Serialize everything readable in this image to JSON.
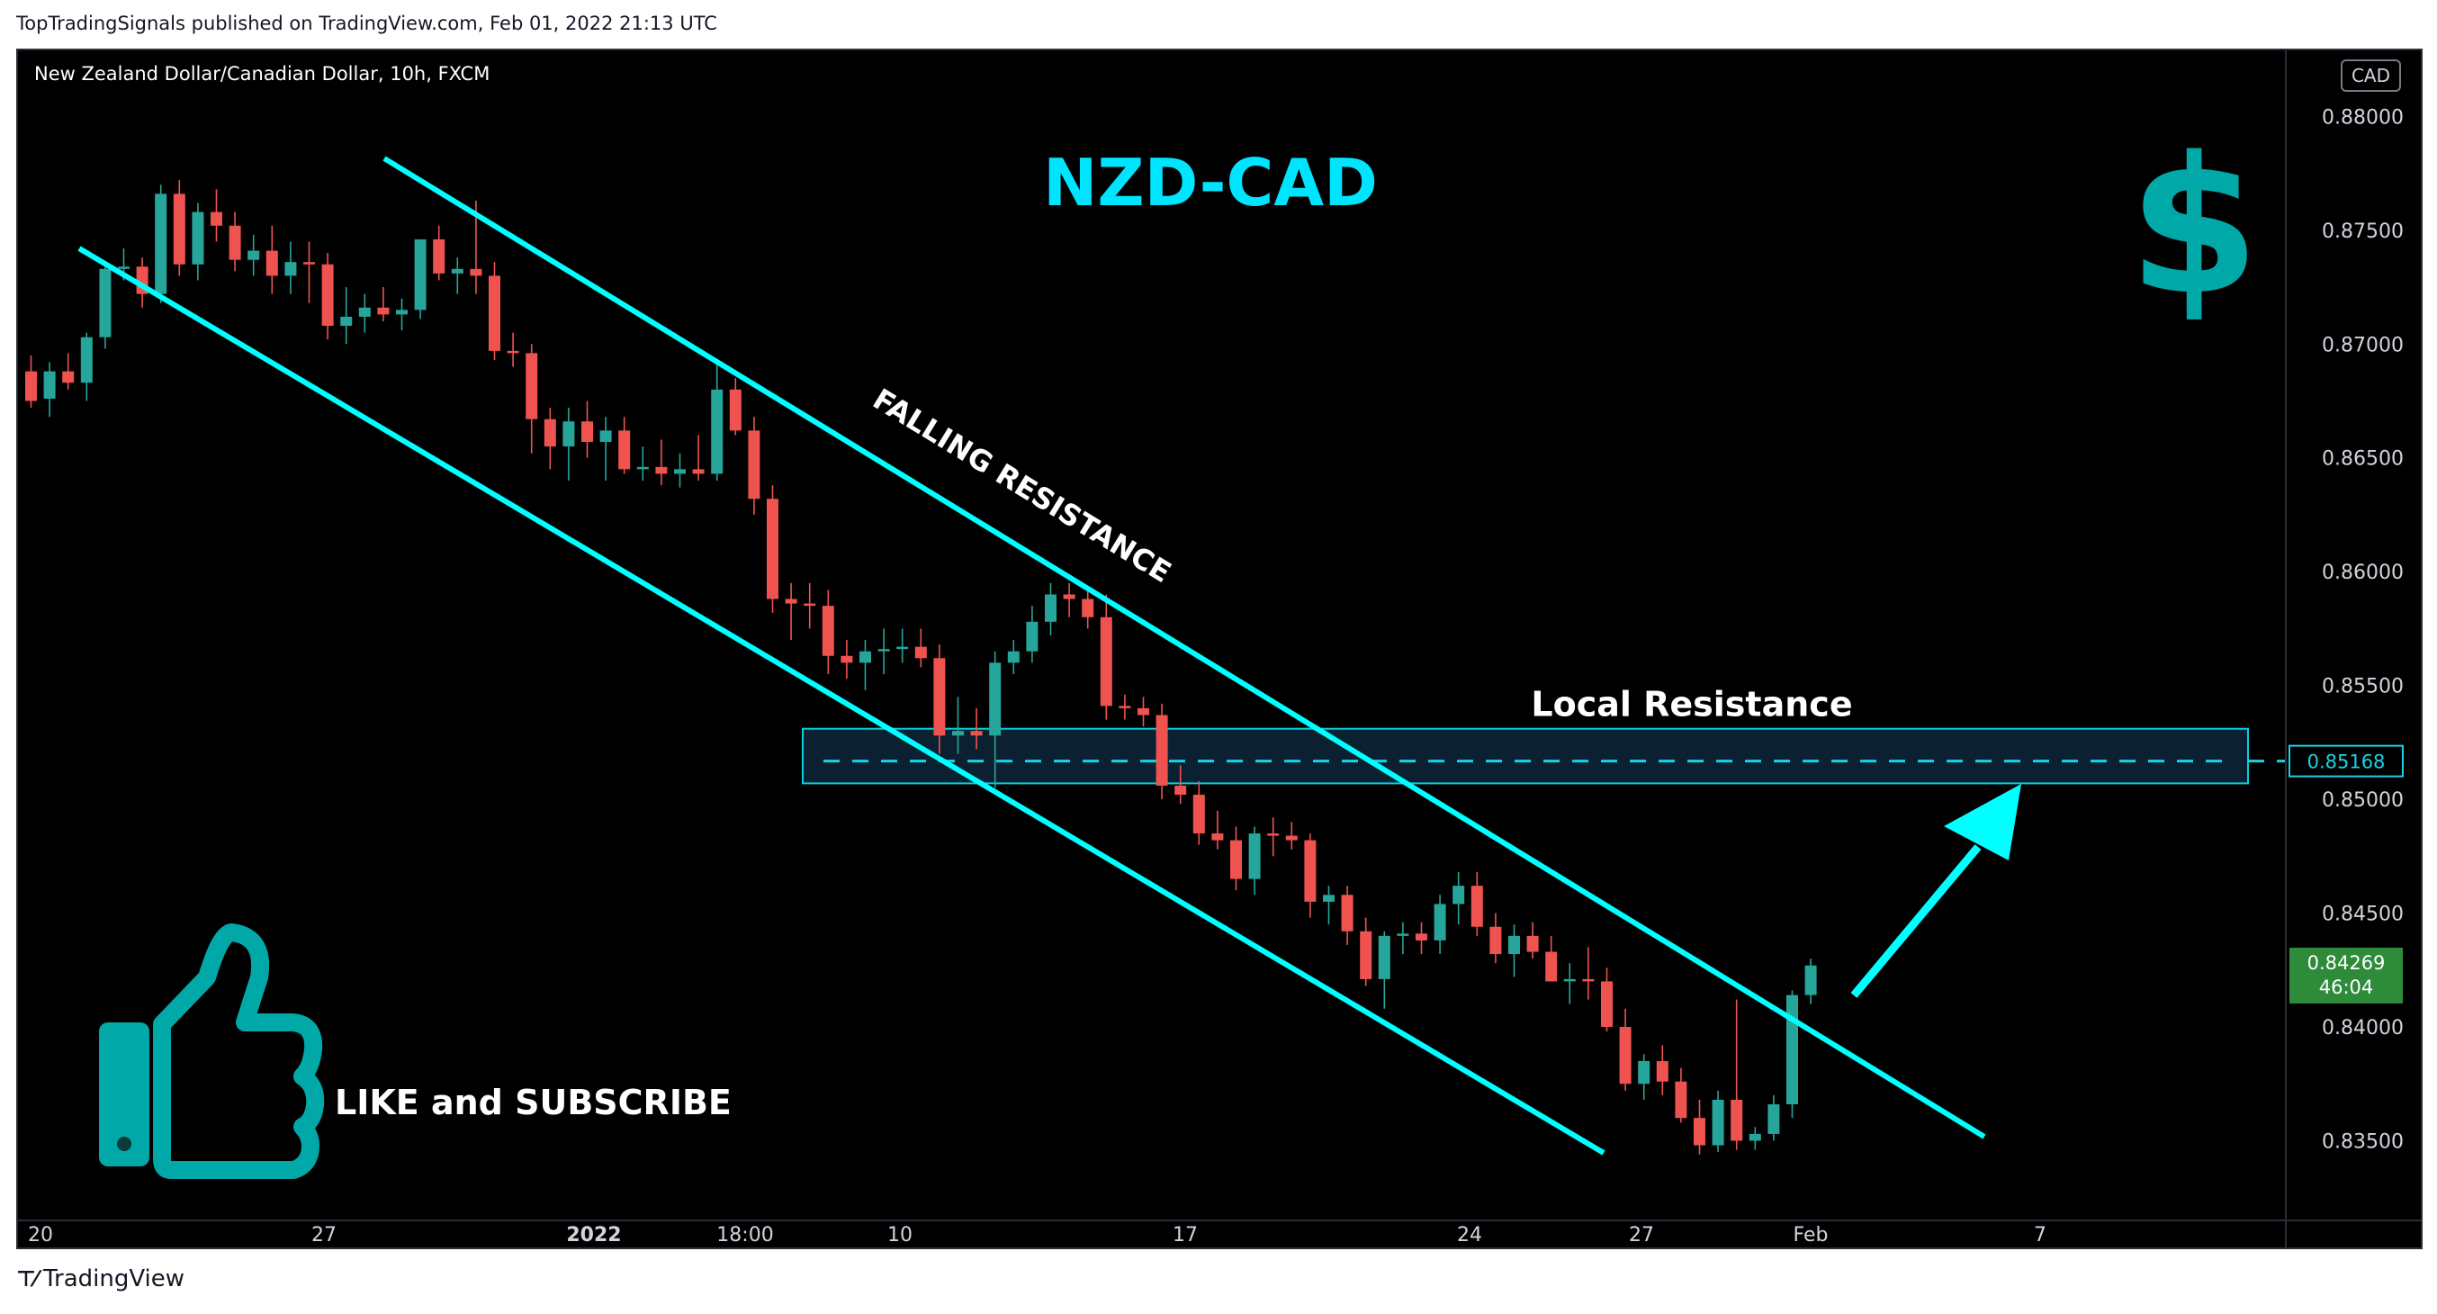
{
  "publisher_line": "TopTradingSignals published on TradingView.com, Feb 01, 2022 21:13 UTC",
  "header": {
    "symbol_line": "New Zealand Dollar/Canadian Dollar, 10h, FXCM",
    "currency": "CAD"
  },
  "footer": {
    "brand": "TradingView"
  },
  "colors": {
    "background": "#000000",
    "up_candle": "#26a69a",
    "down_candle": "#ef5350",
    "trendline": "#00ffff",
    "title": "#00e5ff",
    "icon_teal": "#00a8a8",
    "axis_text": "#d1d4dc",
    "price_tag_bg": "#2e8b3a"
  },
  "chart_data": {
    "type": "candlestick",
    "title": "NZD-CAD",
    "ylim": [
      0.8315,
      0.8829
    ],
    "y_ticks": [
      "0.88000",
      "0.87500",
      "0.87000",
      "0.86500",
      "0.86000",
      "0.85500",
      "0.85000",
      "0.84500",
      "0.84000",
      "0.83500"
    ],
    "x_ticks": [
      "20",
      "27",
      "2022",
      "18:00",
      "10",
      "17",
      "24",
      "27",
      "Feb",
      "7"
    ],
    "current_price": {
      "value": "0.84269",
      "countdown": "46:04"
    },
    "local_resistance": {
      "label": "Local Resistance",
      "price": 0.85168,
      "price_label": "0.85168",
      "zone": [
        0.8507,
        0.8531
      ]
    },
    "channel_label": "FALLING RESISTANCE",
    "annotations": [
      "LIKE and SUBSCRIBE"
    ],
    "trend": "falling channel with breakout above upper line, projected up move to local resistance",
    "candles": [
      [
        0.8688,
        0.8695,
        0.8672,
        0.8675
      ],
      [
        0.8676,
        0.8692,
        0.8668,
        0.8688
      ],
      [
        0.8688,
        0.8696,
        0.868,
        0.8683
      ],
      [
        0.8683,
        0.8705,
        0.8675,
        0.8703
      ],
      [
        0.8703,
        0.8736,
        0.8698,
        0.8733
      ],
      [
        0.8733,
        0.8742,
        0.8728,
        0.8734
      ],
      [
        0.8734,
        0.8738,
        0.8716,
        0.8722
      ],
      [
        0.8722,
        0.877,
        0.8718,
        0.8766
      ],
      [
        0.8766,
        0.8772,
        0.873,
        0.8735
      ],
      [
        0.8735,
        0.8762,
        0.8728,
        0.8758
      ],
      [
        0.8758,
        0.8768,
        0.8745,
        0.8752
      ],
      [
        0.8752,
        0.8758,
        0.8732,
        0.8737
      ],
      [
        0.8737,
        0.8748,
        0.873,
        0.8741
      ],
      [
        0.8741,
        0.8752,
        0.8722,
        0.873
      ],
      [
        0.873,
        0.8745,
        0.8722,
        0.8736
      ],
      [
        0.8736,
        0.8745,
        0.8718,
        0.8735
      ],
      [
        0.8735,
        0.874,
        0.8702,
        0.8708
      ],
      [
        0.8708,
        0.8725,
        0.87,
        0.8712
      ],
      [
        0.8712,
        0.8722,
        0.8705,
        0.8716
      ],
      [
        0.8716,
        0.8725,
        0.871,
        0.8713
      ],
      [
        0.8713,
        0.872,
        0.8706,
        0.8715
      ],
      [
        0.8715,
        0.8745,
        0.8711,
        0.8746
      ],
      [
        0.8746,
        0.8752,
        0.8728,
        0.8731
      ],
      [
        0.8731,
        0.8738,
        0.8722,
        0.8733
      ],
      [
        0.8733,
        0.8763,
        0.8722,
        0.873
      ],
      [
        0.873,
        0.8736,
        0.8693,
        0.8697
      ],
      [
        0.8697,
        0.8705,
        0.869,
        0.8696
      ],
      [
        0.8696,
        0.87,
        0.8652,
        0.8667
      ],
      [
        0.8667,
        0.8672,
        0.8645,
        0.8655
      ],
      [
        0.8655,
        0.8672,
        0.864,
        0.8666
      ],
      [
        0.8666,
        0.8675,
        0.865,
        0.8657
      ],
      [
        0.8657,
        0.8668,
        0.864,
        0.8662
      ],
      [
        0.8662,
        0.8668,
        0.8643,
        0.8645
      ],
      [
        0.8645,
        0.8655,
        0.864,
        0.8646
      ],
      [
        0.8646,
        0.8658,
        0.8638,
        0.8643
      ],
      [
        0.8643,
        0.8652,
        0.8637,
        0.8645
      ],
      [
        0.8645,
        0.866,
        0.864,
        0.8643
      ],
      [
        0.8643,
        0.8693,
        0.864,
        0.868
      ],
      [
        0.868,
        0.8685,
        0.866,
        0.8662
      ],
      [
        0.8662,
        0.8668,
        0.8625,
        0.8632
      ],
      [
        0.8632,
        0.8638,
        0.8582,
        0.8588
      ],
      [
        0.8588,
        0.8595,
        0.857,
        0.8586
      ],
      [
        0.8586,
        0.8595,
        0.8575,
        0.8585
      ],
      [
        0.8585,
        0.8592,
        0.8555,
        0.8563
      ],
      [
        0.8563,
        0.857,
        0.8553,
        0.856
      ],
      [
        0.856,
        0.857,
        0.8548,
        0.8565
      ],
      [
        0.8565,
        0.8575,
        0.8555,
        0.8566
      ],
      [
        0.8566,
        0.8575,
        0.856,
        0.8567
      ],
      [
        0.8567,
        0.8575,
        0.8558,
        0.8562
      ],
      [
        0.8562,
        0.8568,
        0.852,
        0.8528
      ],
      [
        0.8528,
        0.8545,
        0.852,
        0.853
      ],
      [
        0.853,
        0.854,
        0.8522,
        0.8528
      ],
      [
        0.8528,
        0.8565,
        0.8505,
        0.856
      ],
      [
        0.856,
        0.857,
        0.8555,
        0.8565
      ],
      [
        0.8565,
        0.8585,
        0.856,
        0.8578
      ],
      [
        0.8578,
        0.8595,
        0.8572,
        0.859
      ],
      [
        0.859,
        0.8595,
        0.858,
        0.8588
      ],
      [
        0.8588,
        0.8592,
        0.8575,
        0.858
      ],
      [
        0.858,
        0.859,
        0.8535,
        0.8541
      ],
      [
        0.8541,
        0.8546,
        0.8535,
        0.854
      ],
      [
        0.854,
        0.8545,
        0.8532,
        0.8537
      ],
      [
        0.8537,
        0.8542,
        0.85,
        0.8506
      ],
      [
        0.8506,
        0.8515,
        0.8498,
        0.8502
      ],
      [
        0.8502,
        0.8508,
        0.848,
        0.8485
      ],
      [
        0.8485,
        0.8495,
        0.8478,
        0.8482
      ],
      [
        0.8482,
        0.8488,
        0.846,
        0.8465
      ],
      [
        0.8465,
        0.8488,
        0.8458,
        0.8485
      ],
      [
        0.8485,
        0.8492,
        0.8475,
        0.8484
      ],
      [
        0.8484,
        0.849,
        0.8478,
        0.8482
      ],
      [
        0.8482,
        0.8485,
        0.8448,
        0.8455
      ],
      [
        0.8455,
        0.8462,
        0.8445,
        0.8458
      ],
      [
        0.8458,
        0.8462,
        0.8436,
        0.8442
      ],
      [
        0.8442,
        0.8448,
        0.8418,
        0.8421
      ],
      [
        0.8421,
        0.8442,
        0.8408,
        0.844
      ],
      [
        0.844,
        0.8446,
        0.8432,
        0.8441
      ],
      [
        0.8441,
        0.8446,
        0.8432,
        0.8438
      ],
      [
        0.8438,
        0.8458,
        0.8432,
        0.8454
      ],
      [
        0.8454,
        0.8468,
        0.8445,
        0.8462
      ],
      [
        0.8462,
        0.8468,
        0.844,
        0.8444
      ],
      [
        0.8444,
        0.845,
        0.8428,
        0.8432
      ],
      [
        0.8432,
        0.8445,
        0.8422,
        0.844
      ],
      [
        0.844,
        0.8446,
        0.843,
        0.8433
      ],
      [
        0.8433,
        0.844,
        0.842,
        0.842
      ],
      [
        0.842,
        0.8428,
        0.841,
        0.8421
      ],
      [
        0.8421,
        0.8435,
        0.8412,
        0.842
      ],
      [
        0.842,
        0.8426,
        0.8398,
        0.84
      ],
      [
        0.84,
        0.8408,
        0.8372,
        0.8375
      ],
      [
        0.8375,
        0.8388,
        0.8368,
        0.8385
      ],
      [
        0.8385,
        0.8392,
        0.837,
        0.8376
      ],
      [
        0.8376,
        0.8382,
        0.8358,
        0.836
      ],
      [
        0.836,
        0.8368,
        0.8344,
        0.8348
      ],
      [
        0.8348,
        0.8372,
        0.8345,
        0.8368
      ],
      [
        0.8368,
        0.8412,
        0.8346,
        0.835
      ],
      [
        0.835,
        0.8356,
        0.8346,
        0.8353
      ],
      [
        0.8353,
        0.837,
        0.835,
        0.8366
      ],
      [
        0.8366,
        0.8416,
        0.836,
        0.8414
      ],
      [
        0.8414,
        0.843,
        0.841,
        0.8427
      ]
    ]
  }
}
